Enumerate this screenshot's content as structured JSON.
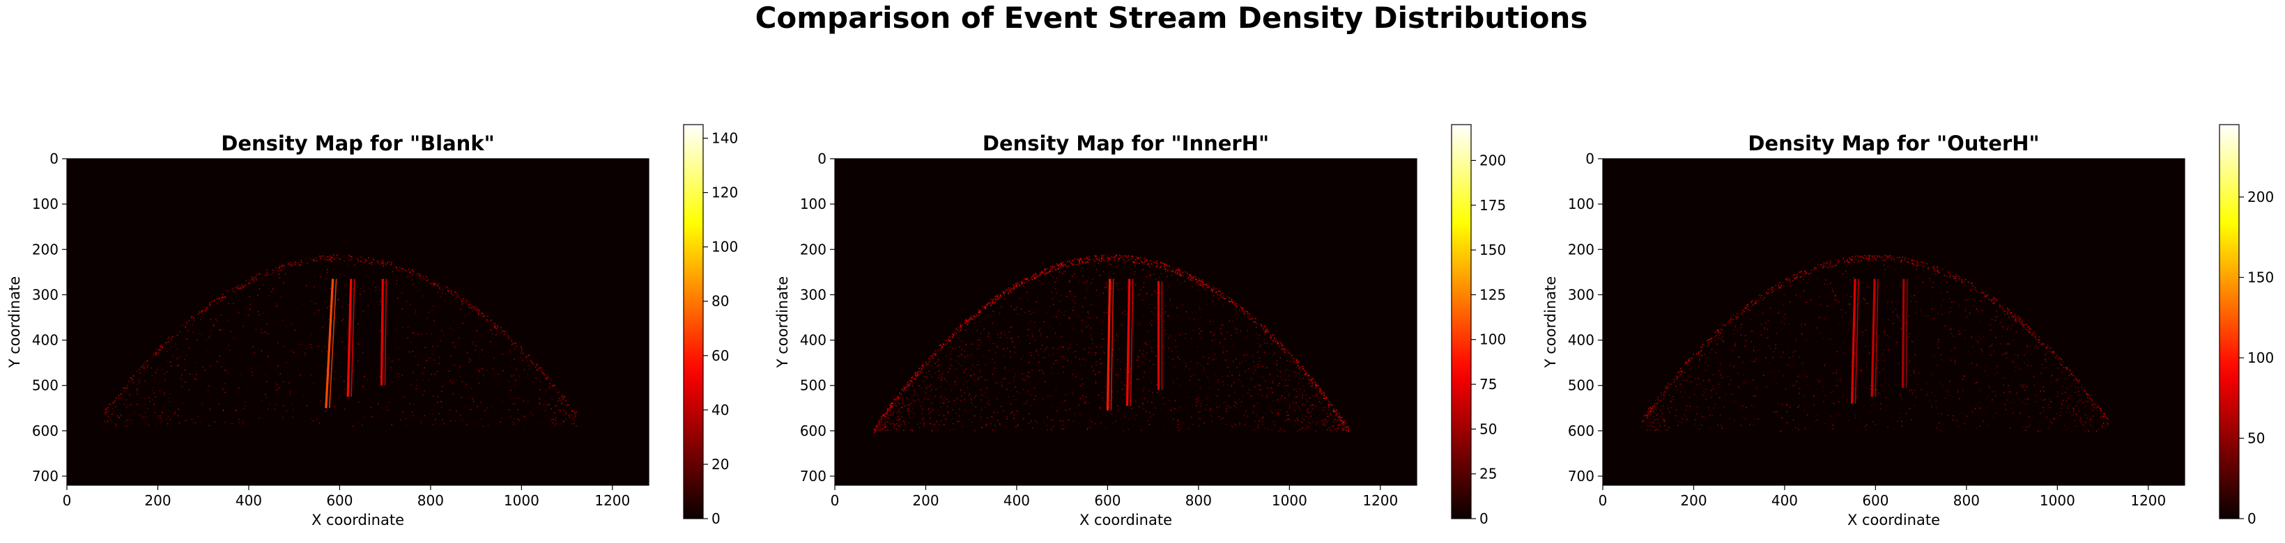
{
  "figure": {
    "title": "Comparison of Event Stream Density Distributions"
  },
  "chart_data": [
    {
      "type": "heatmap",
      "title": "Density Map for \"Blank\"",
      "xlabel": "X coordinate",
      "ylabel": "Y coordinate",
      "xlim": [
        0,
        1280
      ],
      "ylim": [
        720,
        0
      ],
      "xticks": [
        0,
        200,
        400,
        600,
        800,
        1000,
        1200
      ],
      "yticks": [
        0,
        100,
        200,
        300,
        400,
        500,
        600,
        700
      ],
      "colormap": "hot",
      "colorbar": {
        "range": [
          0,
          145
        ],
        "ticks": [
          0,
          20,
          40,
          60,
          80,
          100,
          120,
          140
        ]
      },
      "arc": {
        "x_start": 80,
        "x_end": 1120,
        "top_y": 215,
        "bottom_y": 560
      },
      "streaks": [
        {
          "x_top": 585,
          "y_top": 265,
          "x_bottom": 570,
          "y_bottom": 550,
          "intensity": 70
        },
        {
          "x_top": 625,
          "y_top": 265,
          "x_bottom": 618,
          "y_bottom": 525,
          "intensity": 55
        },
        {
          "x_top": 695,
          "y_top": 265,
          "x_bottom": 692,
          "y_bottom": 500,
          "intensity": 50
        }
      ],
      "noise_density": 0.35
    },
    {
      "type": "heatmap",
      "title": "Density Map for \"InnerH\"",
      "xlabel": "X coordinate",
      "ylabel": "Y coordinate",
      "xlim": [
        0,
        1280
      ],
      "ylim": [
        720,
        0
      ],
      "xticks": [
        0,
        200,
        400,
        600,
        800,
        1000,
        1200
      ],
      "yticks": [
        0,
        100,
        200,
        300,
        400,
        500,
        600,
        700
      ],
      "colormap": "hot",
      "colorbar": {
        "range": [
          0,
          220
        ],
        "ticks": [
          0,
          25,
          50,
          75,
          100,
          125,
          150,
          175,
          200
        ]
      },
      "arc": {
        "x_start": 85,
        "x_end": 1130,
        "top_y": 215,
        "bottom_y": 595
      },
      "streaks": [
        {
          "x_top": 605,
          "y_top": 265,
          "x_bottom": 600,
          "y_bottom": 555,
          "intensity": 90
        },
        {
          "x_top": 648,
          "y_top": 265,
          "x_bottom": 643,
          "y_bottom": 545,
          "intensity": 80
        },
        {
          "x_top": 712,
          "y_top": 270,
          "x_bottom": 712,
          "y_bottom": 510,
          "intensity": 70
        }
      ],
      "noise_density": 0.75
    },
    {
      "type": "heatmap",
      "title": "Density Map for \"OuterH\"",
      "xlabel": "X coordinate",
      "ylabel": "Y coordinate",
      "xlim": [
        0,
        1280
      ],
      "ylim": [
        720,
        0
      ],
      "xticks": [
        0,
        200,
        400,
        600,
        800,
        1000,
        1200
      ],
      "yticks": [
        0,
        100,
        200,
        300,
        400,
        500,
        600,
        700
      ],
      "colormap": "hot",
      "colorbar": {
        "range": [
          0,
          245
        ],
        "ticks": [
          0,
          50,
          100,
          150,
          200
        ]
      },
      "arc": {
        "x_start": 85,
        "x_end": 1110,
        "top_y": 215,
        "bottom_y": 575
      },
      "streaks": [
        {
          "x_top": 555,
          "y_top": 265,
          "x_bottom": 548,
          "y_bottom": 540,
          "intensity": 80
        },
        {
          "x_top": 598,
          "y_top": 265,
          "x_bottom": 592,
          "y_bottom": 525,
          "intensity": 70
        },
        {
          "x_top": 662,
          "y_top": 265,
          "x_bottom": 660,
          "y_bottom": 505,
          "intensity": 60
        }
      ],
      "noise_density": 0.45
    }
  ]
}
